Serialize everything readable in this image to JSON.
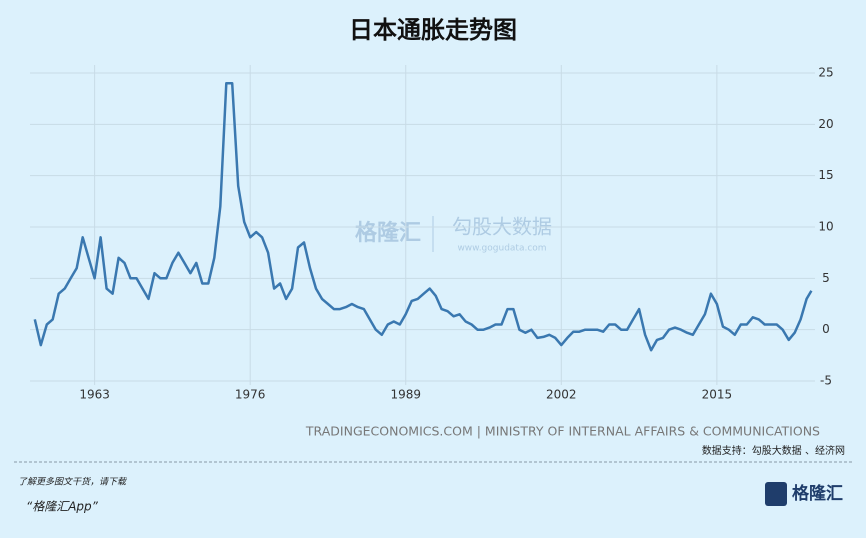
{
  "chart_data": {
    "type": "line",
    "title": "日本通胀走势图",
    "x": [
      1958.0,
      1958.5,
      1959.0,
      1959.5,
      1960.0,
      1960.5,
      1961.0,
      1961.5,
      1962.0,
      1962.5,
      1963.0,
      1963.5,
      1964.0,
      1964.5,
      1965.0,
      1965.5,
      1966.0,
      1966.5,
      1967.0,
      1967.5,
      1968.0,
      1968.5,
      1969.0,
      1969.5,
      1970.0,
      1970.5,
      1971.0,
      1971.5,
      1972.0,
      1972.5,
      1973.0,
      1973.5,
      1974.0,
      1974.5,
      1975.0,
      1975.5,
      1976.0,
      1976.5,
      1977.0,
      1977.5,
      1978.0,
      1978.5,
      1979.0,
      1979.5,
      1980.0,
      1980.5,
      1981.0,
      1981.5,
      1982.0,
      1982.5,
      1983.0,
      1983.5,
      1984.0,
      1984.5,
      1985.0,
      1985.5,
      1986.0,
      1986.5,
      1987.0,
      1987.5,
      1988.0,
      1988.5,
      1989.0,
      1989.5,
      1990.0,
      1990.5,
      1991.0,
      1991.5,
      1992.0,
      1992.5,
      1993.0,
      1993.5,
      1994.0,
      1994.5,
      1995.0,
      1995.5,
      1996.0,
      1996.5,
      1997.0,
      1997.5,
      1998.0,
      1998.5,
      1999.0,
      1999.5,
      2000.0,
      2000.5,
      2001.0,
      2001.5,
      2002.0,
      2002.5,
      2003.0,
      2003.5,
      2004.0,
      2004.5,
      2005.0,
      2005.5,
      2006.0,
      2006.5,
      2007.0,
      2007.5,
      2008.0,
      2008.5,
      2009.0,
      2009.5,
      2010.0,
      2010.5,
      2011.0,
      2011.5,
      2012.0,
      2012.5,
      2013.0,
      2013.5,
      2014.0,
      2014.5,
      2015.0,
      2015.5,
      2016.0,
      2016.5,
      2017.0,
      2017.5,
      2018.0,
      2018.5,
      2019.0,
      2019.5,
      2020.0,
      2020.5,
      2021.0,
      2021.5,
      2022.0,
      2022.5,
      2022.9
    ],
    "values": [
      1,
      -1.5,
      0.5,
      1,
      3.5,
      4,
      5,
      6,
      9,
      7,
      5,
      9,
      4,
      3.5,
      7,
      6.5,
      5,
      5,
      4,
      3,
      5.5,
      5,
      5,
      6.5,
      7.5,
      6.5,
      5.5,
      6.5,
      4.5,
      4.5,
      7,
      12,
      24,
      24,
      14,
      10.5,
      9,
      9.5,
      9,
      7.5,
      4,
      4.5,
      3,
      4,
      8,
      8.5,
      6,
      4,
      3,
      2.5,
      2,
      2,
      2.2,
      2.5,
      2.2,
      2,
      1,
      0,
      -0.5,
      0.5,
      0.8,
      0.5,
      1.5,
      2.8,
      3,
      3.5,
      4,
      3.3,
      2,
      1.8,
      1.3,
      1.5,
      0.8,
      0.5,
      0,
      0,
      0.2,
      0.5,
      0.5,
      2,
      2,
      0,
      -0.3,
      0,
      -0.8,
      -0.7,
      -0.5,
      -0.8,
      -1.5,
      -0.8,
      -0.2,
      -0.2,
      0,
      0,
      0,
      -0.2,
      0.5,
      0.5,
      0,
      0,
      1,
      2,
      -0.5,
      -2,
      -1,
      -0.8,
      0,
      0.2,
      0,
      -0.3,
      -0.5,
      0.5,
      1.5,
      3.5,
      2.5,
      0.3,
      0,
      -0.5,
      0.5,
      0.5,
      1.2,
      1,
      0.5,
      0.5,
      0.5,
      0,
      -1,
      -0.3,
      1,
      3,
      3.8
    ],
    "color": "#3a78b0",
    "xlim": [
      1957.6,
      2023.2
    ],
    "xticks": [
      1963,
      1976,
      1989,
      2002,
      2015
    ],
    "ylim": [
      -5,
      25
    ],
    "yticks": [
      -5,
      0,
      5,
      10,
      15,
      20,
      25
    ],
    "grid": true,
    "source": "TRADINGECONOMICS.COM | MINISTRY OF INTERNAL AFFAIRS & COMMUNICATIONS",
    "data_support": "数据支持：勾股大数据 、经济网"
  },
  "watermark": {
    "brand": "格隆汇",
    "partner": "勾股大数据",
    "url": "www.gogudata.com"
  },
  "footer": {
    "line1": "了解更多图文干货，请下载",
    "line2": "“格隆汇App”",
    "logo": "格隆汇"
  }
}
